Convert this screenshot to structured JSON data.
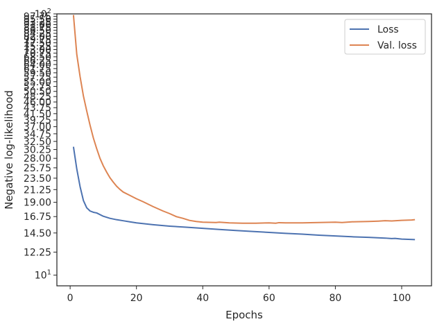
{
  "chart_data": {
    "type": "line",
    "xlabel": "Epochs",
    "ylabel": "Negative log-likelihood",
    "yscale": "log",
    "xlim": [
      -4,
      109
    ],
    "ylim": [
      9.1,
      100
    ],
    "grid": false,
    "legend_position": "top-right",
    "x_ticks": [
      0,
      20,
      40,
      60,
      80,
      100
    ],
    "x_tick_labels": [
      "0",
      "20",
      "40",
      "60",
      "80",
      "100"
    ],
    "y_ticks": [
      10,
      12.25,
      14.5,
      16.75,
      19,
      21.25,
      23.5,
      25.75,
      28,
      30.25,
      32.5,
      34.75,
      37,
      39.25,
      41.5,
      43.75,
      46,
      48.25,
      50.5,
      52.75,
      55,
      57.25,
      59.5,
      61.75,
      64,
      66.25,
      68.5,
      70.75,
      73,
      75.25,
      77.5,
      79.75,
      82,
      84.25,
      86.5,
      88.75,
      91,
      93.25,
      95.5,
      97.75,
      100
    ],
    "y_tick_labels": [
      "10¹",
      "12.25",
      "14.50",
      "16.75",
      "19.00",
      "21.25",
      "23.50",
      "25.75",
      "28.00",
      "30.25",
      "32.50",
      "34.75",
      "37.00",
      "39.25",
      "41.50",
      "43.75",
      "46.00",
      "48.25",
      "50.50",
      "52.75",
      "55.00",
      "57.25",
      "59.50",
      "61.75",
      "64.00",
      "66.25",
      "68.50",
      "70.75",
      "73.00",
      "75.25",
      "77.50",
      "79.75",
      "82.00",
      "84.25",
      "86.50",
      "88.75",
      "91.00",
      "93.25",
      "95.50",
      "97.75",
      "10²"
    ],
    "series": [
      {
        "name": "Loss",
        "color": "#4c72b0",
        "x": [
          1,
          2,
          3,
          4,
          5,
          6,
          7,
          8,
          10,
          12,
          14,
          16,
          18,
          20,
          25,
          30,
          35,
          40,
          45,
          50,
          55,
          60,
          65,
          70,
          75,
          80,
          85,
          90,
          95,
          97,
          98,
          100,
          104
        ],
        "y": [
          31.0,
          25.5,
          21.8,
          19.3,
          18.1,
          17.6,
          17.4,
          17.3,
          16.8,
          16.5,
          16.3,
          16.15,
          16.0,
          15.85,
          15.6,
          15.4,
          15.25,
          15.1,
          14.95,
          14.82,
          14.7,
          14.57,
          14.45,
          14.35,
          14.22,
          14.12,
          14.02,
          13.95,
          13.86,
          13.8,
          13.82,
          13.74,
          13.68
        ]
      },
      {
        "name": "Val. loss",
        "color": "#dd8452",
        "x": [
          1,
          2,
          3,
          4,
          5,
          6,
          7,
          8,
          9,
          10,
          11,
          12,
          13,
          14,
          15,
          16,
          18,
          20,
          22,
          25,
          28,
          30,
          32,
          34,
          36,
          38,
          40,
          44,
          45,
          48,
          52,
          56,
          60,
          62,
          63,
          65,
          70,
          75,
          80,
          82,
          85,
          90,
          93,
          95,
          97,
          100,
          103,
          104
        ],
        "y": [
          99.0,
          70.0,
          57.5,
          48.5,
          42.5,
          37.5,
          33.5,
          30.5,
          28.0,
          26.2,
          24.8,
          23.6,
          22.7,
          21.9,
          21.3,
          20.8,
          20.2,
          19.6,
          19.1,
          18.3,
          17.6,
          17.2,
          16.75,
          16.5,
          16.2,
          16.05,
          15.95,
          15.9,
          15.95,
          15.85,
          15.8,
          15.8,
          15.85,
          15.8,
          15.88,
          15.85,
          15.85,
          15.9,
          15.95,
          15.9,
          16.0,
          16.05,
          16.1,
          16.15,
          16.12,
          16.2,
          16.25,
          16.3
        ]
      }
    ]
  }
}
